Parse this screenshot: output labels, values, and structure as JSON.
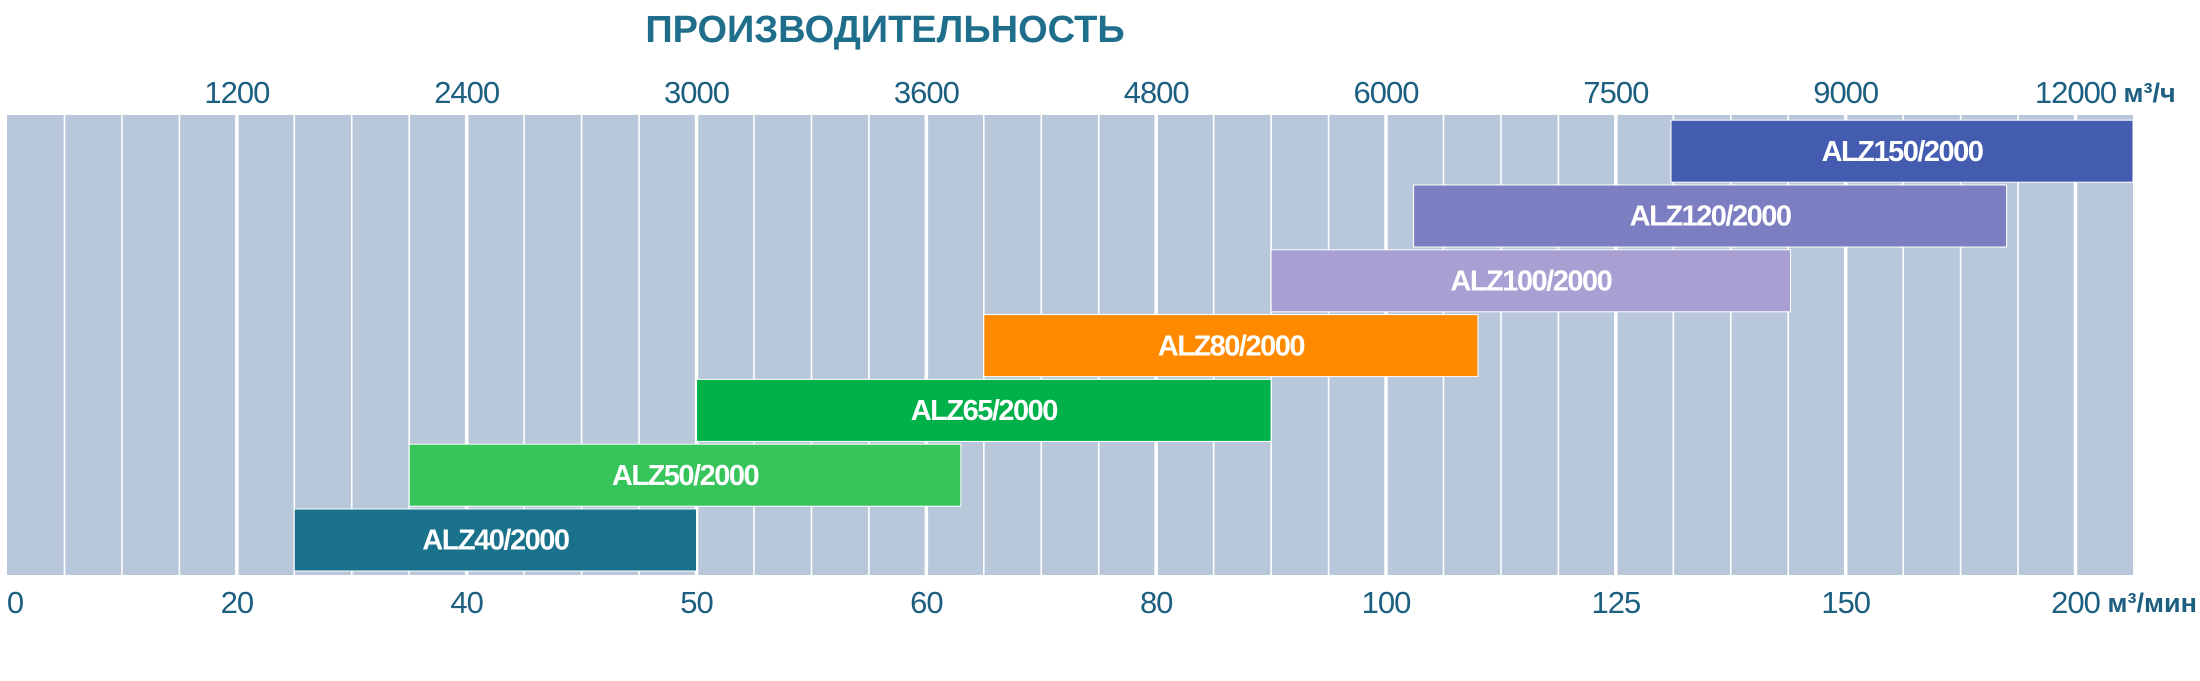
{
  "chart_data": {
    "type": "range-bar",
    "title": "ПРОИЗВОДИТЕЛЬНОСТЬ",
    "x_unit": "м³/мин",
    "x2_unit": "м³/ч",
    "xlim": [
      0,
      212.5
    ],
    "xticks": [
      0,
      20,
      40,
      50,
      60,
      80,
      100,
      125,
      150,
      200
    ],
    "x2ticks": [
      1200,
      2400,
      3000,
      3600,
      4800,
      6000,
      7500,
      9000,
      12000
    ],
    "bars": [
      {
        "name": "ALZ40/2000",
        "color": "#1a718b",
        "start": 25,
        "end": 50
      },
      {
        "name": "ALZ50/2000",
        "color": "#37c45a",
        "start": 35,
        "end": 63
      },
      {
        "name": "ALZ65/2000",
        "color": "#00b14a",
        "start": 50,
        "end": 90
      },
      {
        "name": "ALZ80/2000",
        "color": "#ff8a00",
        "start": 65,
        "end": 110
      },
      {
        "name": "ALZ100/2000",
        "color": "#a89fd2",
        "start": 90,
        "end": 144
      },
      {
        "name": "ALZ120/2000",
        "color": "#7b7fc2",
        "start": 103,
        "end": 185
      },
      {
        "name": "ALZ150/2000",
        "color": "#445cb0",
        "start": 131,
        "end": 212.5
      }
    ]
  }
}
